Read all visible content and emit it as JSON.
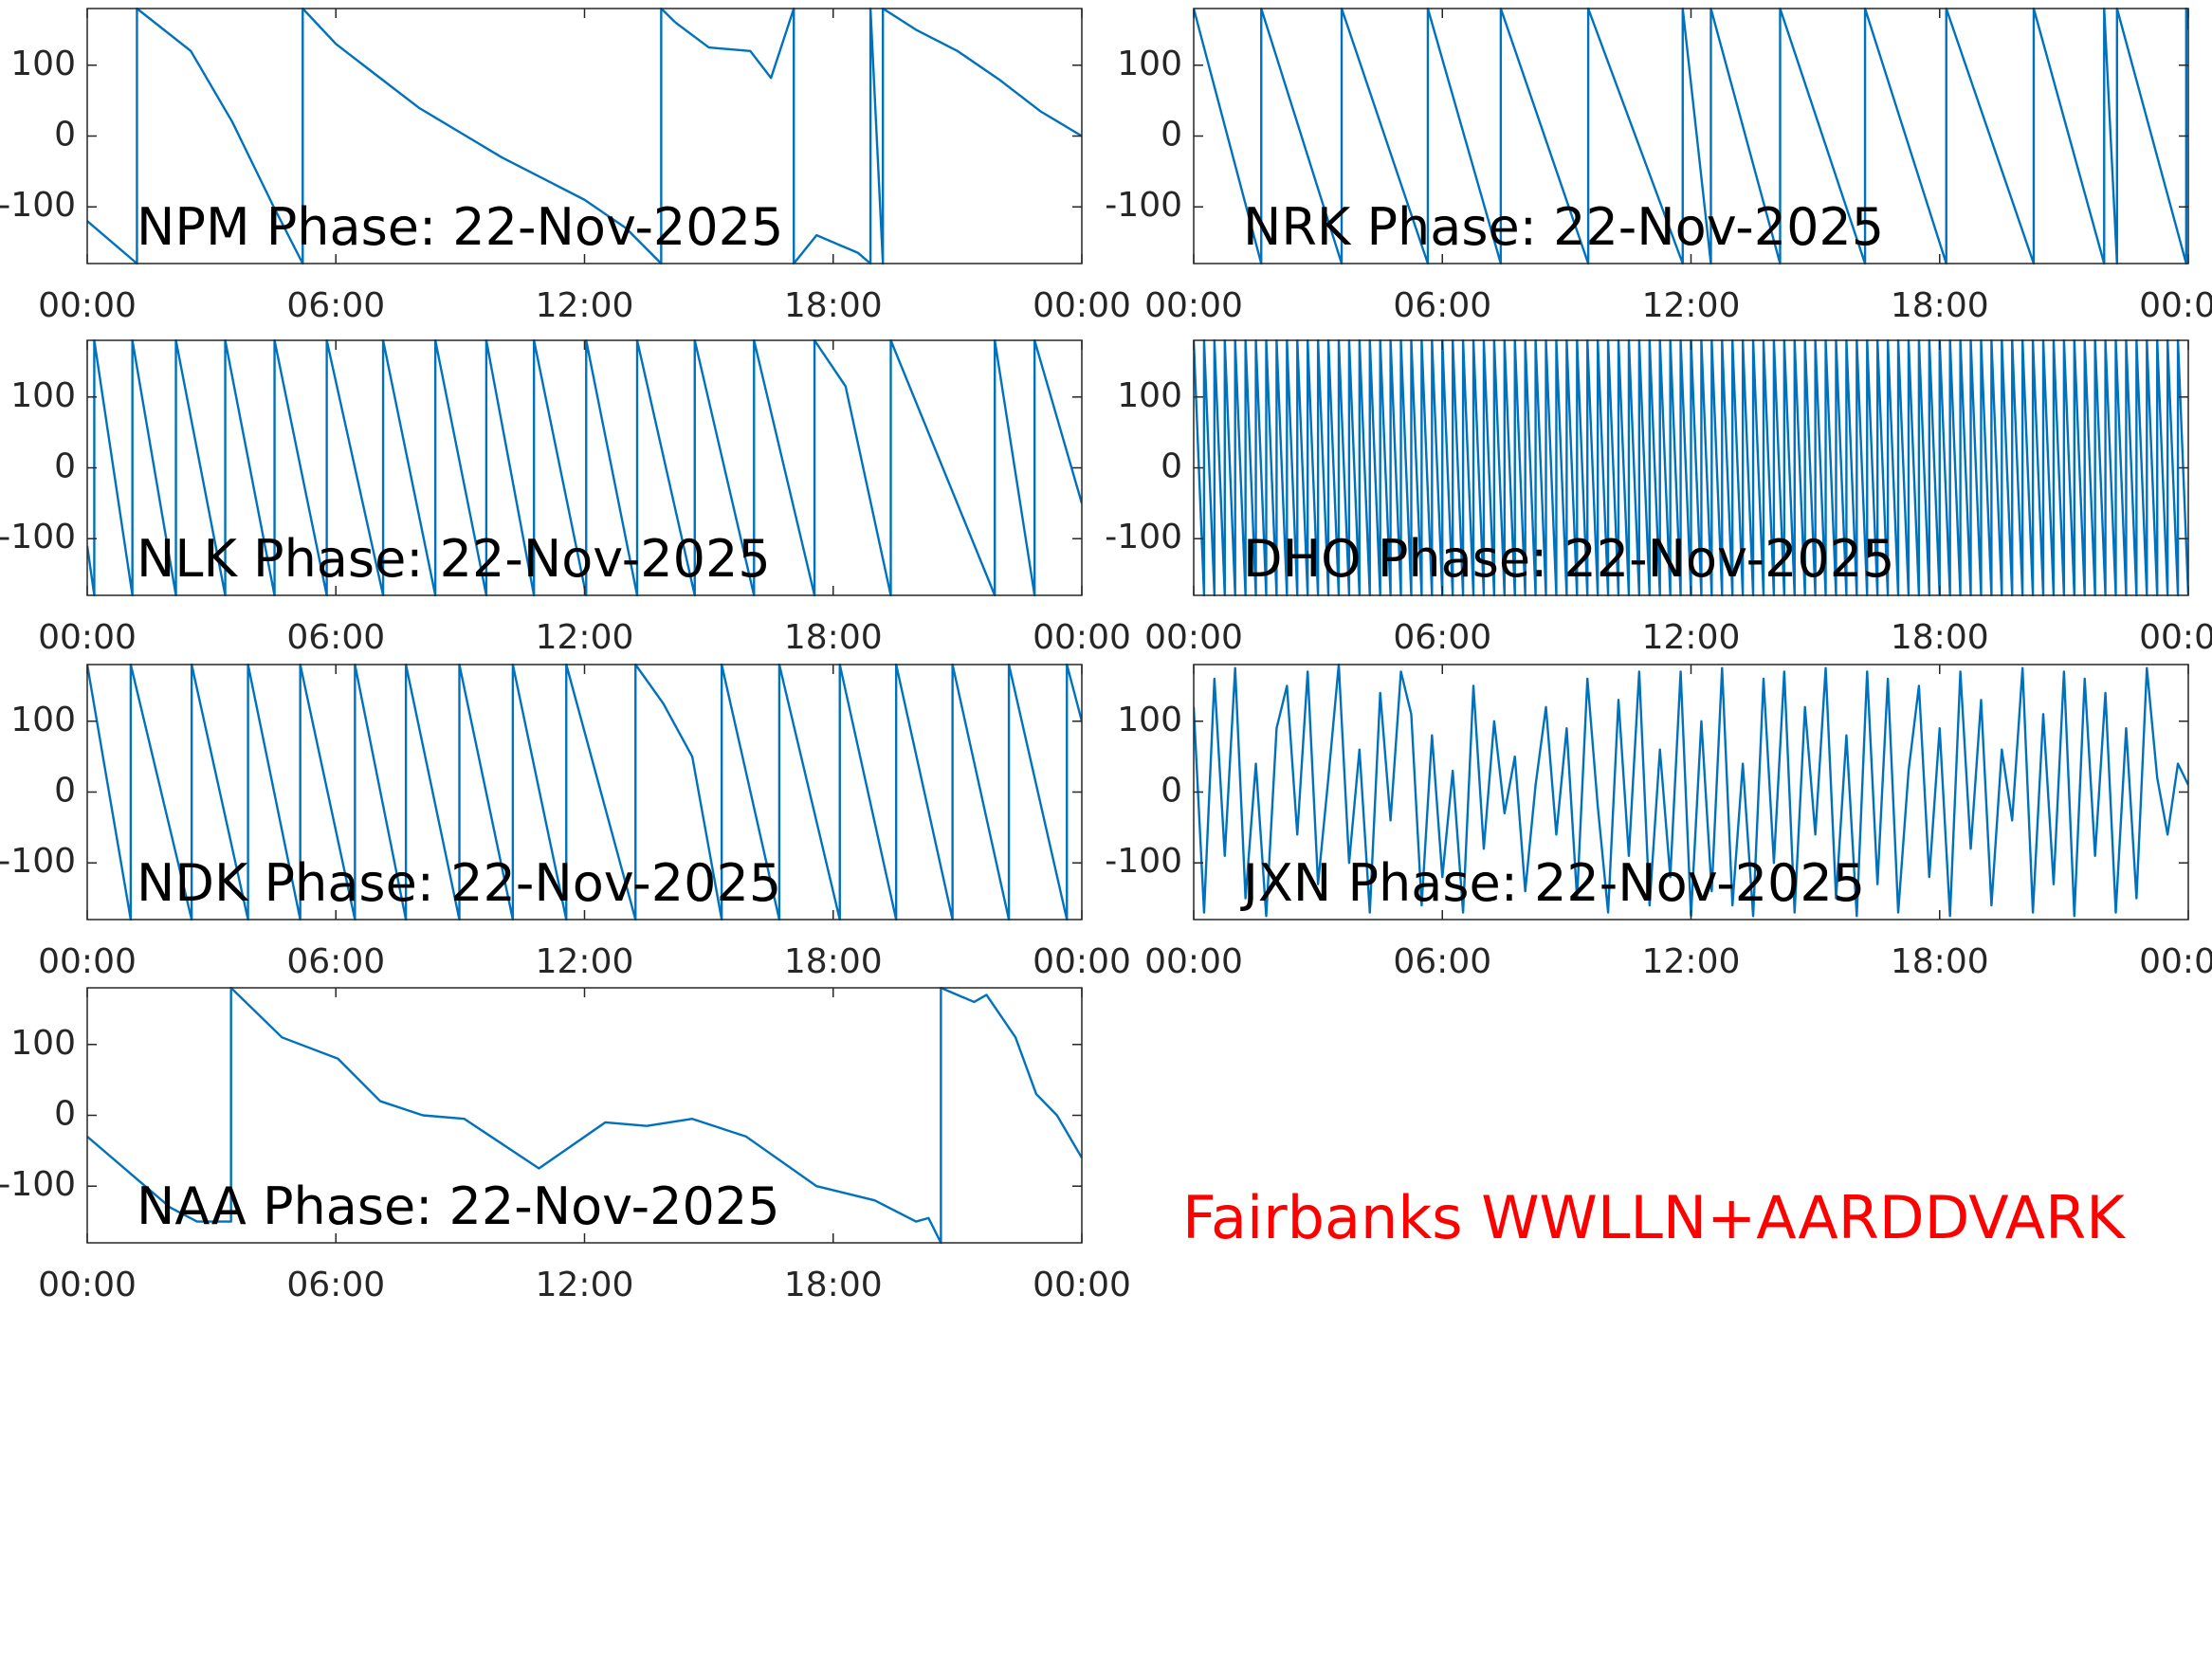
{
  "chart_data": [
    {
      "type": "line",
      "title": "NPM Phase: 22-Nov-2025",
      "color": "#0072bd",
      "x": [
        0,
        1.2,
        1.2,
        2.5,
        3.5,
        4.5,
        5.2,
        5.2,
        6,
        7,
        8,
        9,
        10,
        11,
        12,
        13,
        13.85,
        13.85,
        14.2,
        15,
        16,
        16.5,
        17.05,
        17.05,
        17.6,
        18.6,
        18.9,
        18.9,
        19.2,
        19.2,
        20,
        21,
        22,
        23,
        24
      ],
      "values": [
        -120,
        -180,
        180,
        120,
        20,
        -100,
        -180,
        180,
        130,
        85,
        40,
        5,
        -30,
        -60,
        -90,
        -130,
        -180,
        180,
        160,
        125,
        120,
        82,
        180,
        -180,
        -140,
        -165,
        -180,
        180,
        -180,
        180,
        150,
        120,
        80,
        35,
        0
      ],
      "xlim": [
        0,
        24
      ],
      "xticks": [
        {
          "value": 0,
          "label": "00:00"
        },
        {
          "value": 6,
          "label": "06:00"
        },
        {
          "value": 12,
          "label": "12:00"
        },
        {
          "value": 18,
          "label": "18:00"
        },
        {
          "value": 24,
          "label": "00:00"
        }
      ],
      "ylim": [
        -180,
        180
      ],
      "yticks": [
        -100,
        0,
        100
      ]
    },
    {
      "type": "line",
      "title": "NRK Phase: 22-Nov-2025",
      "color": "#0072bd",
      "x": [
        0,
        1.63,
        1.63,
        3.57,
        3.57,
        5.65,
        5.65,
        7.41,
        7.41,
        9.52,
        9.52,
        11.8,
        11.8,
        12.48,
        12.48,
        14.15,
        14.15,
        16.2,
        16.2,
        18.16,
        18.16,
        20.27,
        20.27,
        21.97,
        21.97,
        22.28,
        22.28,
        23.95,
        23.95,
        24
      ],
      "values": [
        180,
        -180,
        180,
        -180,
        180,
        -180,
        180,
        -180,
        180,
        -180,
        180,
        -180,
        180,
        -180,
        180,
        -180,
        180,
        -180,
        180,
        -180,
        180,
        -180,
        180,
        -180,
        180,
        -180,
        180,
        -180,
        180,
        150
      ],
      "xlim": [
        0,
        24
      ],
      "xticks": [
        {
          "value": 0,
          "label": "00:00"
        },
        {
          "value": 6,
          "label": "06:00"
        },
        {
          "value": 12,
          "label": "12:00"
        },
        {
          "value": 18,
          "label": "18:00"
        },
        {
          "value": 24,
          "label": "00:00"
        }
      ],
      "ylim": [
        -180,
        180
      ],
      "yticks": [
        -100,
        0,
        100
      ]
    },
    {
      "type": "line",
      "title": "NLK Phase: 22-Nov-2025",
      "color": "#0072bd",
      "x": [
        0,
        0.17,
        0.17,
        1.09,
        1.09,
        2.14,
        2.14,
        3.33,
        3.33,
        4.52,
        4.52,
        5.78,
        5.78,
        7.14,
        7.14,
        8.4,
        8.4,
        9.63,
        9.63,
        10.78,
        10.78,
        12.04,
        12.04,
        13.27,
        13.27,
        14.66,
        14.66,
        16.09,
        16.09,
        17.55,
        17.55,
        18.3,
        19.39,
        19.39,
        21.9,
        21.9,
        22.86,
        22.86,
        24
      ],
      "values": [
        -110,
        -180,
        180,
        -180,
        180,
        -180,
        180,
        -180,
        180,
        -180,
        180,
        -180,
        180,
        -180,
        180,
        -180,
        180,
        -180,
        180,
        -180,
        180,
        -180,
        180,
        -180,
        180,
        -180,
        180,
        -180,
        180,
        -180,
        180,
        115,
        -180,
        180,
        -180,
        180,
        -180,
        180,
        -50
      ],
      "xlim": [
        0,
        24
      ],
      "xticks": [
        {
          "value": 0,
          "label": "00:00"
        },
        {
          "value": 6,
          "label": "06:00"
        },
        {
          "value": 12,
          "label": "12:00"
        },
        {
          "value": 18,
          "label": "18:00"
        },
        {
          "value": 24,
          "label": "00:00"
        }
      ],
      "ylim": [
        -180,
        180
      ],
      "yticks": [
        -100,
        0,
        100
      ]
    },
    {
      "type": "line",
      "title": "DHO Phase: 22-Nov-2025",
      "color": "#0072bd",
      "x": [
        0,
        0.25,
        0.25,
        0.5,
        0.5,
        0.75,
        0.75,
        1,
        1,
        1.25,
        1.25,
        1.5,
        1.5,
        1.75,
        1.75,
        2,
        2,
        2.25,
        2.25,
        2.5,
        2.5,
        2.75,
        2.75,
        3,
        3,
        3.25,
        3.25,
        3.5,
        3.5,
        3.75,
        3.75,
        4,
        4,
        4.25,
        4.25,
        4.5,
        4.5,
        4.75,
        4.75,
        5,
        5,
        5.25,
        5.25,
        5.5,
        5.5,
        5.75,
        5.75,
        6,
        6,
        6.25,
        6.25,
        6.5,
        6.5,
        6.75,
        6.75,
        7,
        7,
        7.25,
        7.25,
        7.5,
        7.5,
        7.75,
        7.75,
        8,
        8,
        8.25,
        8.25,
        8.5,
        8.5,
        8.75,
        8.75,
        9,
        9,
        9.25,
        9.25,
        9.5,
        9.5,
        9.75,
        9.75,
        10,
        10,
        10.25,
        10.25,
        10.5,
        10.5,
        10.75,
        10.75,
        11,
        11,
        11.25,
        11.25,
        11.5,
        11.5,
        11.75,
        11.75,
        12,
        12,
        12.25,
        12.25,
        12.5,
        12.5,
        12.75,
        12.75,
        13,
        13,
        13.25,
        13.25,
        13.5,
        13.5,
        13.75,
        13.75,
        14,
        14,
        14.25,
        14.25,
        14.5,
        14.5,
        14.75,
        14.75,
        15,
        15,
        15.25,
        15.25,
        15.5,
        15.5,
        15.75,
        15.75,
        16,
        16,
        16.25,
        16.25,
        16.5,
        16.5,
        16.75,
        16.75,
        17,
        17,
        17.25,
        17.25,
        17.5,
        17.5,
        17.75,
        17.75,
        18,
        18,
        18.25,
        18.25,
        18.5,
        18.5,
        18.75,
        18.75,
        19,
        19,
        19.25,
        19.25,
        19.5,
        19.5,
        19.75,
        19.75,
        20,
        20,
        20.25,
        20.25,
        20.5,
        20.5,
        20.75,
        20.75,
        21,
        21,
        21.25,
        21.25,
        21.5,
        21.5,
        21.75,
        21.75,
        22,
        22,
        22.25,
        22.25,
        22.5,
        22.5,
        22.75,
        22.75,
        23,
        23,
        23.25,
        23.25,
        23.5,
        23.5,
        23.75,
        23.75,
        24
      ],
      "values": [
        180,
        -180,
        180,
        -180,
        180,
        -180,
        180,
        -180,
        180,
        -180,
        180,
        -180,
        180,
        -180,
        180,
        -180,
        180,
        -180,
        180,
        -180,
        180,
        -180,
        180,
        -180,
        180,
        -180,
        180,
        -180,
        180,
        -180,
        180,
        -180,
        180,
        -180,
        180,
        -180,
        180,
        -180,
        180,
        -180,
        180,
        -180,
        180,
        -180,
        180,
        -180,
        180,
        -180,
        180,
        -180,
        180,
        -180,
        180,
        -180,
        180,
        -180,
        180,
        -180,
        180,
        -180,
        180,
        -180,
        180,
        -180,
        180,
        -180,
        180,
        -180,
        180,
        -180,
        180,
        -180,
        180,
        -180,
        180,
        -180,
        180,
        -180,
        180,
        -180,
        180,
        -180,
        180,
        -180,
        180,
        -180,
        180,
        -180,
        180,
        -180,
        180,
        -180,
        180,
        -180,
        180,
        -180,
        180,
        -180,
        180,
        -180,
        180,
        -180,
        180,
        -180,
        180,
        -180,
        180,
        -180,
        180,
        -180,
        180,
        -180,
        180,
        -180,
        180,
        -180,
        180,
        -180,
        180,
        -180,
        180,
        -180,
        180,
        -180,
        180,
        -180,
        180,
        -180,
        180,
        -180,
        180,
        -180,
        180,
        -180,
        180,
        -180,
        180,
        -180,
        180,
        -180,
        180,
        -180,
        180,
        -180,
        180,
        -180,
        180,
        -180,
        180,
        -180,
        180,
        -180,
        180,
        -180,
        180,
        -180,
        180,
        -180,
        180,
        -180,
        180,
        -180,
        180,
        -180,
        180,
        -180,
        180,
        -180,
        180,
        -180,
        180,
        -180,
        180,
        -180,
        180,
        -180,
        180,
        -180,
        180,
        -180,
        180,
        -180,
        180,
        -180,
        180,
        -180,
        180,
        -180,
        180,
        -180,
        180,
        -180
      ],
      "xlim": [
        0,
        24
      ],
      "xticks": [
        {
          "value": 0,
          "label": "00:00"
        },
        {
          "value": 6,
          "label": "06:00"
        },
        {
          "value": 12,
          "label": "12:00"
        },
        {
          "value": 18,
          "label": "18:00"
        },
        {
          "value": 24,
          "label": "00:00"
        }
      ],
      "ylim": [
        -180,
        180
      ],
      "yticks": [
        -100,
        0,
        100
      ]
    },
    {
      "type": "line",
      "title": "NDK Phase: 22-Nov-2025",
      "color": "#0072bd",
      "x": [
        0,
        1.05,
        1.05,
        2.52,
        2.52,
        3.88,
        3.88,
        5.14,
        5.14,
        6.46,
        6.46,
        7.69,
        7.69,
        8.98,
        8.98,
        10.27,
        10.27,
        11.56,
        11.56,
        13.23,
        13.23,
        13.9,
        14.6,
        15.31,
        15.31,
        16.7,
        16.7,
        18.16,
        18.16,
        19.52,
        19.52,
        20.88,
        20.88,
        22.24,
        22.24,
        23.64,
        23.64,
        24
      ],
      "values": [
        180,
        -180,
        180,
        -180,
        180,
        -180,
        180,
        -180,
        180,
        -180,
        180,
        -180,
        180,
        -180,
        180,
        -180,
        180,
        -180,
        180,
        -180,
        180,
        125,
        50,
        -180,
        180,
        -180,
        180,
        -180,
        180,
        -180,
        180,
        -180,
        180,
        -180,
        180,
        -180,
        180,
        100
      ],
      "xlim": [
        0,
        24
      ],
      "xticks": [
        {
          "value": 0,
          "label": "00:00"
        },
        {
          "value": 6,
          "label": "06:00"
        },
        {
          "value": 12,
          "label": "12:00"
        },
        {
          "value": 18,
          "label": "18:00"
        },
        {
          "value": 24,
          "label": "00:00"
        }
      ],
      "ylim": [
        -180,
        180
      ],
      "yticks": [
        -100,
        0,
        100
      ]
    },
    {
      "type": "line",
      "title": "JXN Phase: 22-Nov-2025",
      "color": "#0072bd",
      "x": [
        0,
        0.25,
        0.5,
        0.75,
        1,
        1.25,
        1.5,
        1.75,
        2,
        2.25,
        2.5,
        2.75,
        3,
        3.25,
        3.5,
        3.75,
        4,
        4.25,
        4.5,
        4.75,
        5,
        5.25,
        5.5,
        5.75,
        6,
        6.25,
        6.5,
        6.75,
        7,
        7.25,
        7.5,
        7.75,
        8,
        8.25,
        8.5,
        8.75,
        9,
        9.25,
        9.5,
        9.75,
        10,
        10.25,
        10.5,
        10.75,
        11,
        11.25,
        11.5,
        11.75,
        12,
        12.25,
        12.5,
        12.75,
        13,
        13.25,
        13.5,
        13.75,
        14,
        14.25,
        14.5,
        14.75,
        15,
        15.25,
        15.5,
        15.75,
        16,
        16.25,
        16.5,
        16.75,
        17,
        17.25,
        17.5,
        17.75,
        18,
        18.25,
        18.5,
        18.75,
        19,
        19.25,
        19.5,
        19.75,
        20,
        20.25,
        20.5,
        20.75,
        21,
        21.25,
        21.5,
        21.75,
        22,
        22.25,
        22.5,
        22.75,
        23,
        23.25,
        23.5,
        23.75,
        24
      ],
      "values": [
        120,
        -170,
        160,
        -90,
        175,
        -150,
        40,
        -175,
        90,
        150,
        -60,
        170,
        -130,
        20,
        180,
        -100,
        60,
        -170,
        140,
        -40,
        170,
        110,
        -160,
        80,
        -120,
        30,
        -170,
        150,
        -80,
        100,
        -30,
        50,
        -140,
        10,
        120,
        -60,
        90,
        -150,
        160,
        -20,
        -170,
        130,
        -90,
        170,
        -160,
        60,
        -120,
        170,
        -175,
        100,
        -140,
        175,
        -160,
        40,
        -175,
        160,
        -100,
        170,
        -170,
        120,
        -60,
        175,
        -150,
        80,
        -175,
        170,
        -130,
        160,
        -170,
        30,
        150,
        -120,
        90,
        -175,
        170,
        -80,
        130,
        -160,
        60,
        -40,
        175,
        -170,
        110,
        -130,
        170,
        -175,
        160,
        -90,
        140,
        -170,
        90,
        -150,
        175,
        20,
        -60,
        40,
        10
      ],
      "xlim": [
        0,
        24
      ],
      "xticks": [
        {
          "value": 0,
          "label": "00:00"
        },
        {
          "value": 6,
          "label": "06:00"
        },
        {
          "value": 12,
          "label": "12:00"
        },
        {
          "value": 18,
          "label": "18:00"
        },
        {
          "value": 24,
          "label": "00:00"
        }
      ],
      "ylim": [
        -180,
        180
      ],
      "yticks": [
        -100,
        0,
        100
      ]
    },
    {
      "type": "line",
      "title": "NAA Phase: 22-Nov-2025",
      "color": "#0072bd",
      "x": [
        0,
        1,
        2,
        2.65,
        3.47,
        3.47,
        4.7,
        6.05,
        7.07,
        8.1,
        9.1,
        10.9,
        12.5,
        13.5,
        14.6,
        15.9,
        17.6,
        19,
        20,
        20.3,
        20.6,
        20.6,
        21.4,
        21.7,
        22.4,
        22.9,
        23.4,
        24
      ],
      "values": [
        -30,
        -80,
        -130,
        -150,
        -150,
        180,
        110,
        80,
        20,
        0,
        -5,
        -75,
        -10,
        -15,
        -5,
        -30,
        -100,
        -120,
        -150,
        -145,
        -180,
        180,
        160,
        170,
        110,
        30,
        0,
        -60
      ],
      "xlim": [
        0,
        24
      ],
      "xticks": [
        {
          "value": 0,
          "label": "00:00"
        },
        {
          "value": 6,
          "label": "06:00"
        },
        {
          "value": 12,
          "label": "12:00"
        },
        {
          "value": 18,
          "label": "18:00"
        },
        {
          "value": 24,
          "label": "00:00"
        }
      ],
      "ylim": [
        -180,
        180
      ],
      "yticks": [
        -100,
        0,
        100
      ]
    }
  ],
  "caption": "Fairbanks WWLLN+AARDDVARK"
}
